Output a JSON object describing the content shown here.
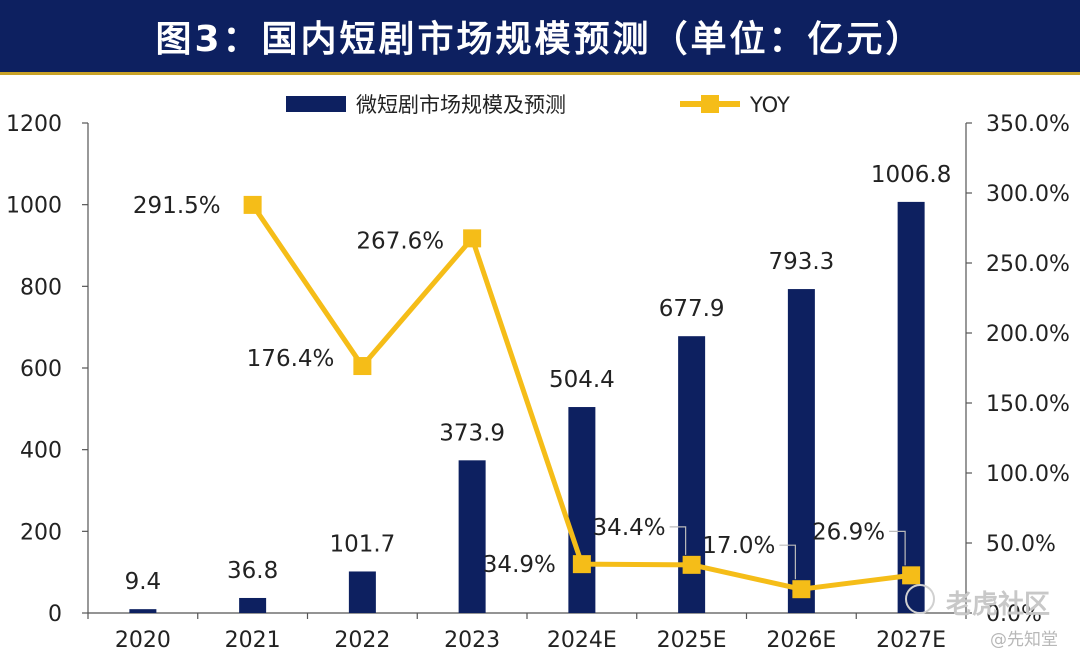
{
  "title": "图3：国内短剧市场规模预测（单位：亿元）",
  "watermark": "老虎社区",
  "watermark2": "@先知堂",
  "colors": {
    "bar": "#0d2060",
    "line": "#f5bd18",
    "header_bg": "#0d2060"
  },
  "chart_data": {
    "type": "bar",
    "categories": [
      "2020",
      "2021",
      "2022",
      "2023",
      "2024E",
      "2025E",
      "2026E",
      "2027E"
    ],
    "series": [
      {
        "name": "微短剧市场规模及预测",
        "type": "bar",
        "axis": "left",
        "values": [
          9.4,
          36.8,
          101.7,
          373.9,
          504.4,
          677.9,
          793.3,
          1006.8
        ],
        "labels": [
          "9.4",
          "36.8",
          "101.7",
          "373.9",
          "504.4",
          "677.9",
          "793.3",
          "1006.8"
        ]
      },
      {
        "name": "YOY",
        "type": "line",
        "axis": "right",
        "values": [
          null,
          291.5,
          176.4,
          267.6,
          34.9,
          34.4,
          17.0,
          26.9
        ],
        "labels": [
          "",
          "291.5%",
          "176.4%",
          "267.6%",
          "34.9%",
          "34.4%",
          "17.0%",
          "26.9%"
        ]
      }
    ],
    "ylim": [
      0,
      1200
    ],
    "y2lim": [
      0,
      350
    ],
    "yticks": [
      "0",
      "200",
      "400",
      "600",
      "800",
      "1000",
      "1200"
    ],
    "y2ticks": [
      "0.0%",
      "50.0%",
      "100.0%",
      "150.0%",
      "200.0%",
      "250.0%",
      "300.0%",
      "350.0%"
    ],
    "grid": false,
    "legend": "top-center"
  }
}
